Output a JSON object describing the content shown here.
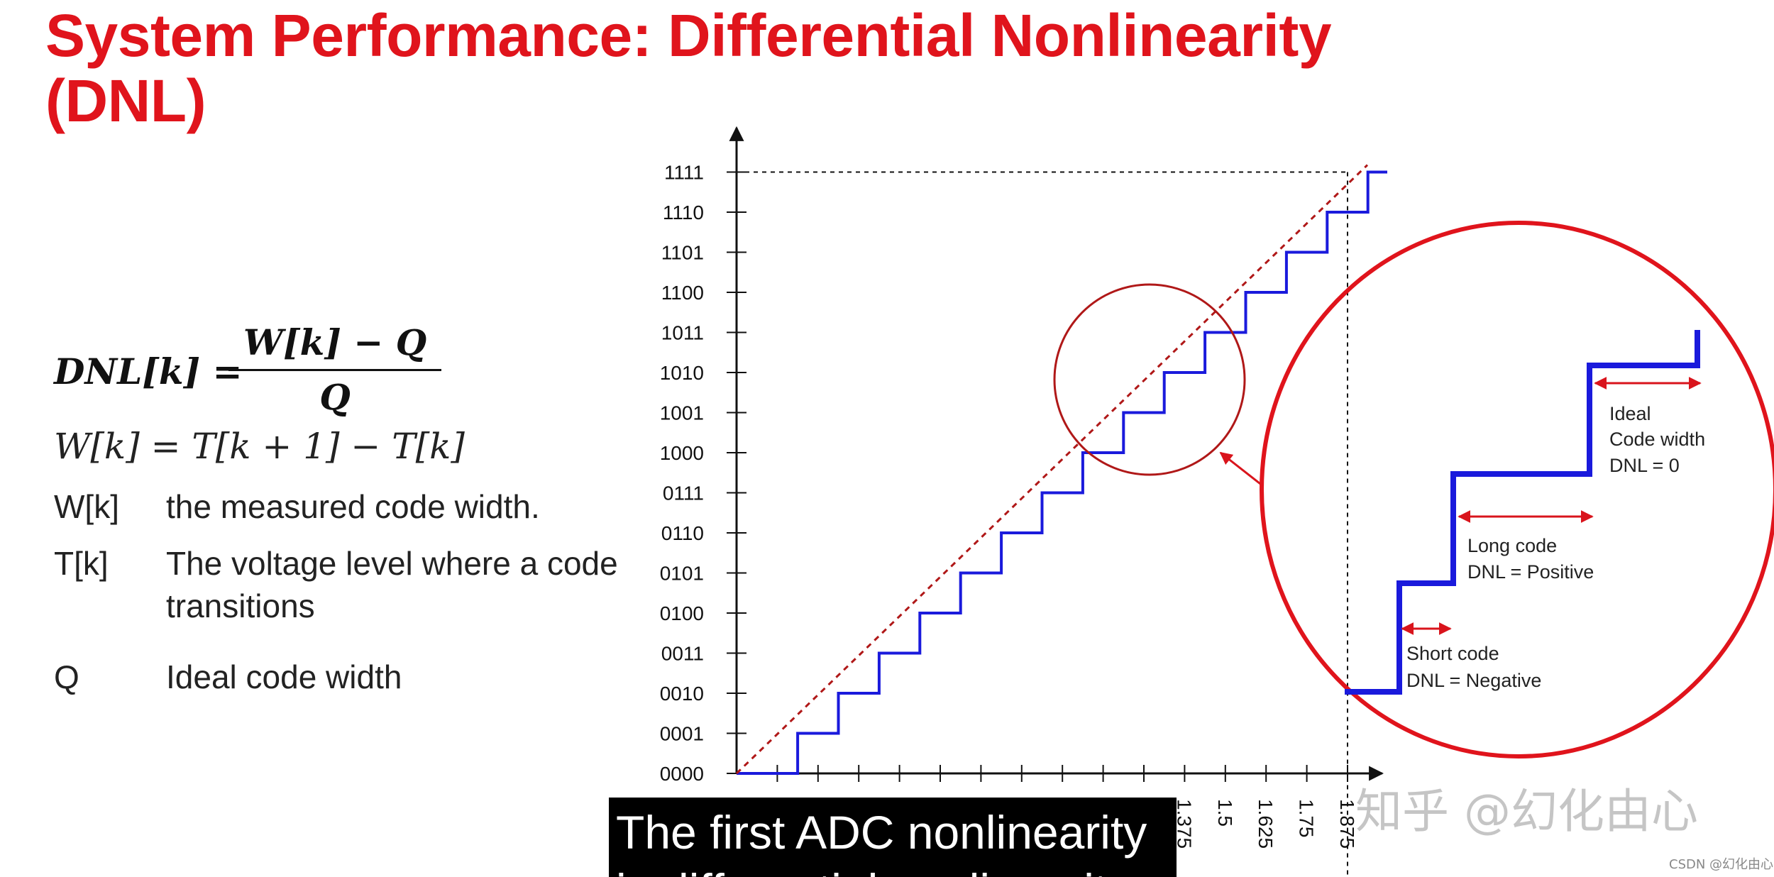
{
  "title": {
    "line1": "System Performance: Differential Nonlinearity",
    "line2": "(DNL)"
  },
  "formulas": {
    "dnl_lhs": "DNL[k] =",
    "dnl_numerator": "W[k] − Q",
    "dnl_denominator": "Q",
    "width_eq": "W[k] = T[k + 1] − T[k]"
  },
  "definitions": [
    {
      "term": "W[k]",
      "desc": "the measured code width."
    },
    {
      "term": "T[k]",
      "desc": "The voltage level where a code transitions"
    },
    {
      "term": "Q",
      "desc": "Ideal code width"
    }
  ],
  "chart_data": {
    "type": "line",
    "y_ticks": [
      "0000",
      "0001",
      "0010",
      "0011",
      "0100",
      "0101",
      "0110",
      "0111",
      "1000",
      "1001",
      "1010",
      "1011",
      "1100",
      "1101",
      "1110",
      "1111"
    ],
    "x_ticks_labeled": [
      "1.375",
      "1.5",
      "1.625",
      "1.75",
      "1.875"
    ],
    "series": [
      {
        "style": "staircase",
        "color": "#1a1adc",
        "x": [
          0,
          0.125,
          0.25,
          0.375,
          0.5,
          0.625,
          0.75,
          0.875,
          1.0,
          1.125,
          1.25,
          1.375,
          1.5,
          1.625,
          1.75,
          1.875
        ],
        "y": [
          0,
          1,
          2,
          3,
          4,
          5,
          6,
          7,
          8,
          9,
          10,
          11,
          12,
          13,
          14,
          15
        ]
      },
      {
        "style": "dashed-ideal",
        "color": "#b01818",
        "x": [
          0,
          1.875
        ],
        "y": [
          0,
          15
        ]
      }
    ]
  },
  "zoom_annotations": {
    "ideal_line1": "Ideal",
    "ideal_line2": "Code width",
    "ideal_line3": "DNL = 0",
    "long_line1": "Long code",
    "long_line2": "DNL = Positive",
    "short_line1": "Short code",
    "short_line2": "DNL = Negative"
  },
  "colors": {
    "title": "#e0141c",
    "staircase": "#1a1adc",
    "ideal_line": "#b01818",
    "circle": "#d9141c"
  },
  "subtitle": {
    "line1": "The first ADC nonlinearity",
    "line2": "is differential nonlinearity"
  },
  "watermark": "知乎 @幻化由心",
  "csdn_mark": "CSDN @幻化由心"
}
